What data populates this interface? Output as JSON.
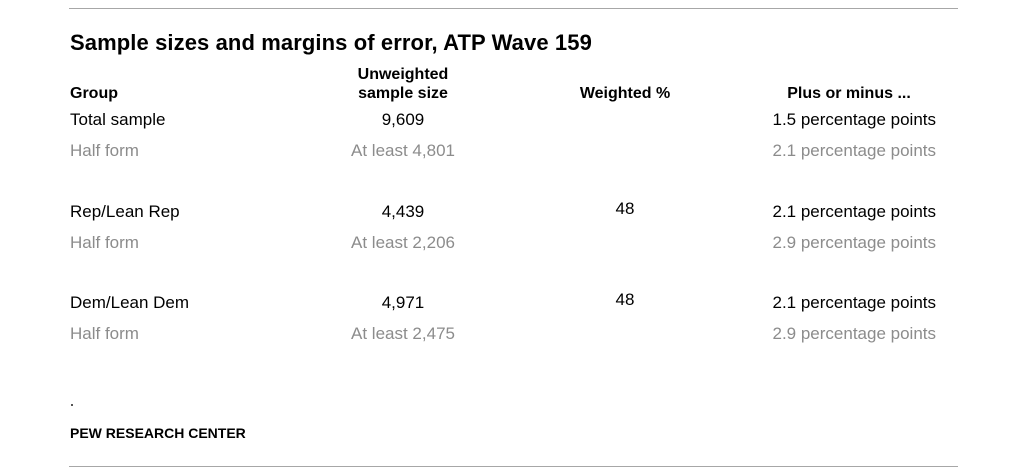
{
  "title": "Sample sizes and margins of error, ATP Wave 159",
  "headers": {
    "group": "Group",
    "unweighted_line1": "Unweighted",
    "unweighted_line2": "sample size",
    "weighted": "Weighted %",
    "plus_minus": "Plus or minus ..."
  },
  "rows": [
    {
      "group": "Total sample",
      "n": "9,609",
      "weighted": "",
      "moe": "1.5 percentage points"
    },
    {
      "group": "Half form",
      "n": "At least 4,801",
      "weighted": "",
      "moe": "2.1 percentage points"
    },
    {
      "group": "Rep/Lean Rep",
      "n": "4,439",
      "weighted": "48",
      "moe": "2.1 percentage points"
    },
    {
      "group": "Half form",
      "n": "At least 2,206",
      "weighted": "",
      "moe": "2.9 percentage points"
    },
    {
      "group": "Dem/Lean Dem",
      "n": "4,971",
      "weighted": "48",
      "moe": "2.1 percentage points"
    },
    {
      "group": "Half form",
      "n": "At least 2,475",
      "weighted": "",
      "moe": "2.9 percentage points"
    }
  ],
  "note_marker": ".",
  "source": "PEW RESEARCH CENTER"
}
